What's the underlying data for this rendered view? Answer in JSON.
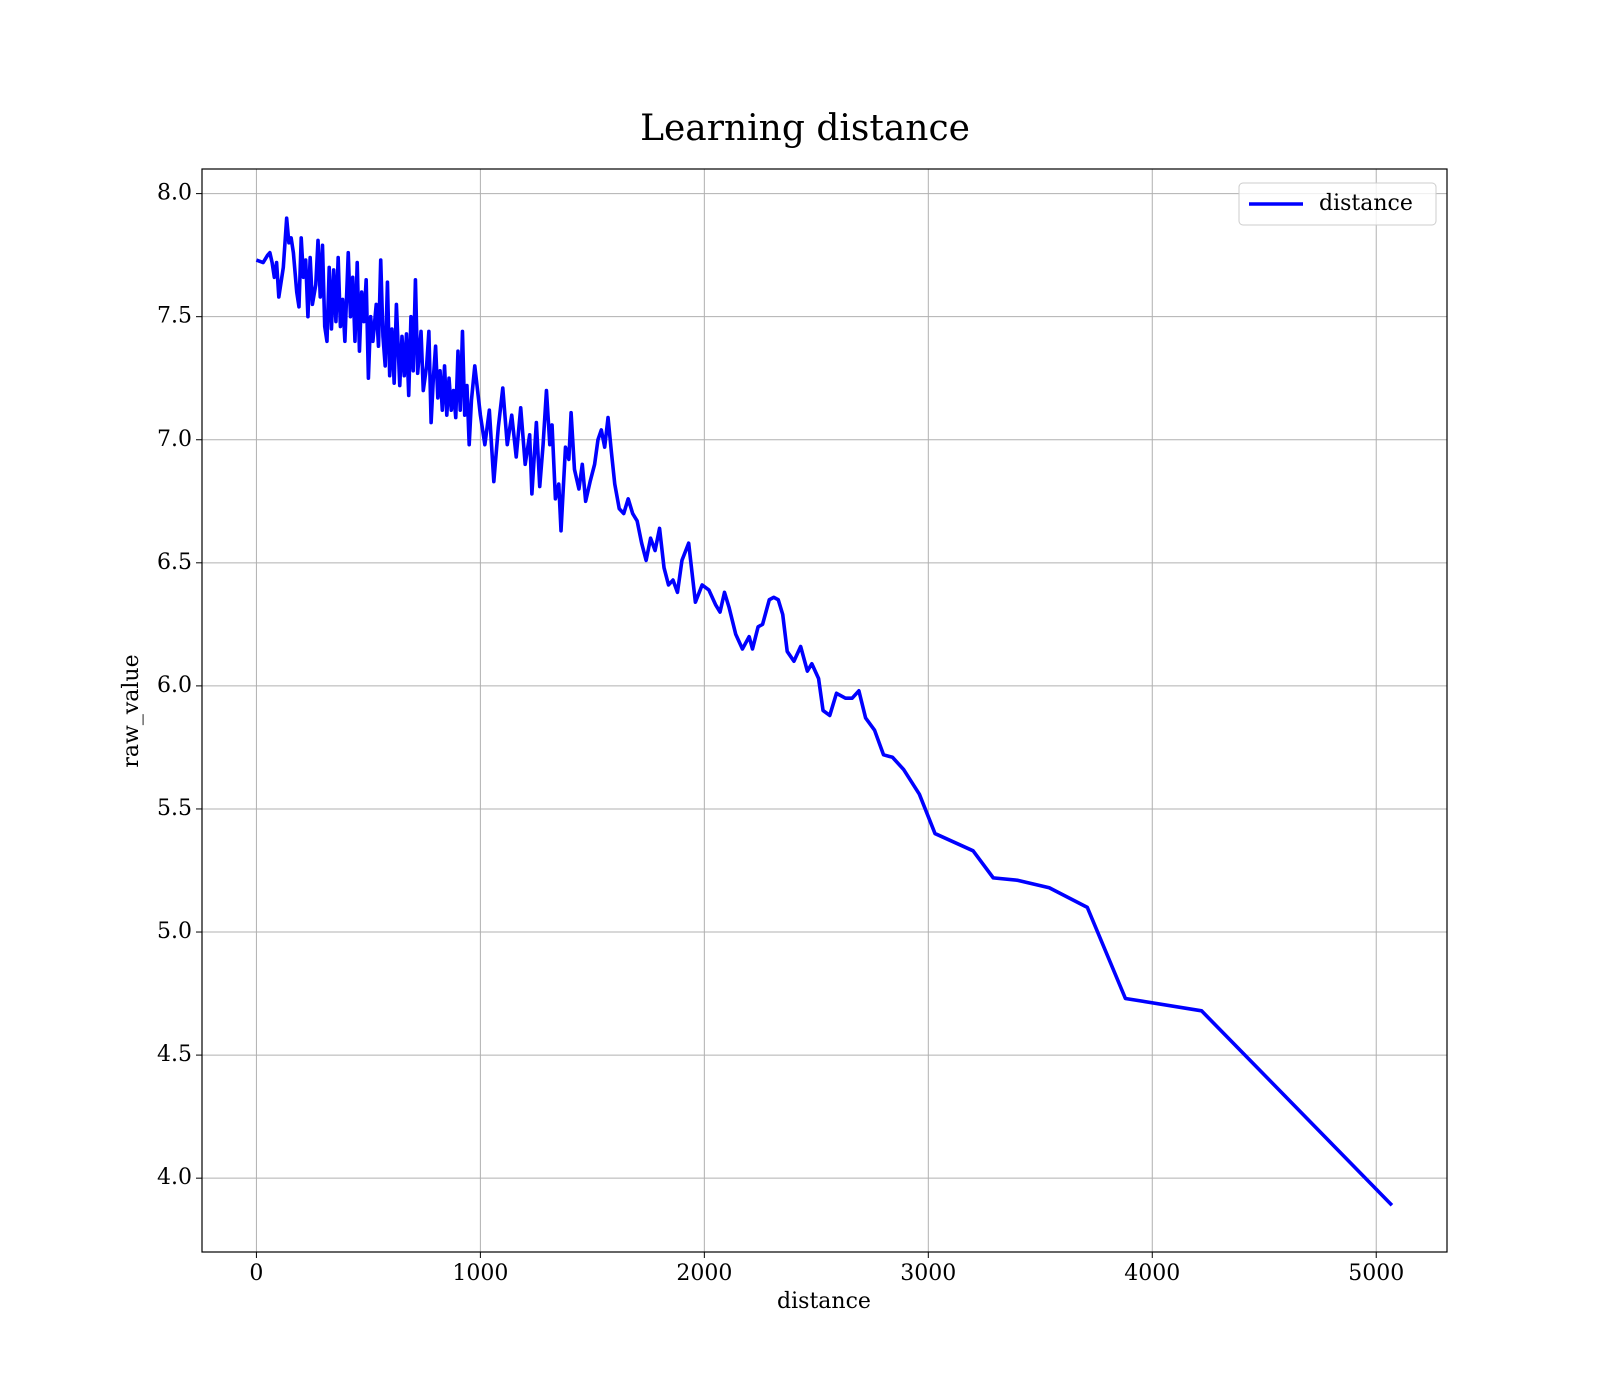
{
  "chart_data": {
    "type": "line",
    "title": "Learning distance",
    "x_label": "distance",
    "y_label": "raw_value",
    "x": [
      0,
      30,
      50,
      60,
      70,
      80,
      90,
      100,
      120,
      135,
      145,
      155,
      165,
      180,
      190,
      200,
      210,
      220,
      230,
      240,
      250,
      265,
      275,
      285,
      295,
      305,
      315,
      325,
      335,
      345,
      355,
      365,
      375,
      385,
      395,
      410,
      420,
      430,
      440,
      450,
      460,
      470,
      480,
      490,
      500,
      510,
      520,
      535,
      545,
      555,
      565,
      575,
      585,
      595,
      605,
      615,
      625,
      640,
      650,
      660,
      670,
      680,
      690,
      700,
      710,
      720,
      735,
      745,
      760,
      770,
      780,
      790,
      800,
      810,
      820,
      830,
      840,
      850,
      860,
      870,
      880,
      890,
      900,
      910,
      920,
      930,
      940,
      950,
      960,
      975,
      1000,
      1020,
      1040,
      1060,
      1080,
      1100,
      1120,
      1140,
      1160,
      1180,
      1200,
      1220,
      1230,
      1250,
      1265,
      1280,
      1295,
      1310,
      1320,
      1335,
      1350,
      1360,
      1380,
      1395,
      1405,
      1420,
      1440,
      1455,
      1470,
      1490,
      1510,
      1525,
      1540,
      1555,
      1570,
      1585,
      1600,
      1620,
      1640,
      1660,
      1680,
      1700,
      1720,
      1740,
      1760,
      1780,
      1800,
      1820,
      1840,
      1860,
      1880,
      1900,
      1930,
      1960,
      1990,
      2020,
      2050,
      2070,
      2090,
      2110,
      2140,
      2170,
      2200,
      2215,
      2240,
      2260,
      2290,
      2310,
      2330,
      2350,
      2370,
      2400,
      2430,
      2460,
      2480,
      2510,
      2530,
      2560,
      2590,
      2630,
      2660,
      2690,
      2720,
      2760,
      2800,
      2840,
      2890,
      2960,
      3030,
      3200,
      3290,
      3400,
      3540,
      3710,
      3880,
      4220,
      5070
    ],
    "series": [
      {
        "name": "distance",
        "color": "#0000ff",
        "values": [
          7.73,
          7.72,
          7.75,
          7.76,
          7.72,
          7.66,
          7.72,
          7.58,
          7.7,
          7.9,
          7.8,
          7.82,
          7.76,
          7.6,
          7.54,
          7.82,
          7.66,
          7.73,
          7.5,
          7.74,
          7.55,
          7.63,
          7.81,
          7.58,
          7.79,
          7.46,
          7.4,
          7.7,
          7.45,
          7.69,
          7.48,
          7.74,
          7.46,
          7.57,
          7.4,
          7.76,
          7.5,
          7.66,
          7.4,
          7.72,
          7.36,
          7.6,
          7.48,
          7.65,
          7.25,
          7.5,
          7.4,
          7.55,
          7.38,
          7.73,
          7.42,
          7.3,
          7.64,
          7.26,
          7.45,
          7.23,
          7.55,
          7.22,
          7.42,
          7.26,
          7.43,
          7.18,
          7.5,
          7.28,
          7.65,
          7.27,
          7.44,
          7.2,
          7.3,
          7.44,
          7.07,
          7.25,
          7.38,
          7.17,
          7.28,
          7.12,
          7.3,
          7.1,
          7.25,
          7.12,
          7.2,
          7.09,
          7.36,
          7.12,
          7.44,
          7.1,
          7.22,
          6.98,
          7.16,
          7.3,
          7.1,
          6.98,
          7.12,
          6.83,
          7.05,
          7.21,
          6.98,
          7.1,
          6.93,
          7.13,
          6.9,
          7.02,
          6.78,
          7.07,
          6.81,
          6.98,
          7.2,
          6.98,
          7.06,
          6.76,
          6.82,
          6.63,
          6.97,
          6.92,
          7.11,
          6.88,
          6.8,
          6.9,
          6.75,
          6.83,
          6.9,
          7.0,
          7.04,
          6.97,
          7.09,
          6.95,
          6.82,
          6.72,
          6.7,
          6.76,
          6.7,
          6.67,
          6.58,
          6.51,
          6.6,
          6.55,
          6.64,
          6.48,
          6.41,
          6.43,
          6.38,
          6.51,
          6.58,
          6.34,
          6.41,
          6.39,
          6.33,
          6.3,
          6.38,
          6.32,
          6.21,
          6.15,
          6.2,
          6.15,
          6.24,
          6.25,
          6.35,
          6.36,
          6.35,
          6.29,
          6.14,
          6.1,
          6.16,
          6.06,
          6.09,
          6.03,
          5.9,
          5.88,
          5.97,
          5.95,
          5.95,
          5.98,
          5.87,
          5.82,
          5.72,
          5.71,
          5.66,
          5.56,
          5.4,
          5.33,
          5.22,
          5.21,
          5.18,
          5.1,
          4.73,
          4.68,
          3.89
        ]
      }
    ],
    "xlim": [
      -243,
      5316
    ],
    "ylim": [
      3.7,
      8.1
    ],
    "xticks": [
      0,
      1000,
      2000,
      3000,
      4000,
      5000
    ],
    "yticks": [
      {
        "value": 4,
        "label": "4.0"
      },
      4.5,
      {
        "value": 5,
        "label": "5.0"
      },
      5.5,
      {
        "value": 6,
        "label": "6.0"
      },
      6.5,
      {
        "value": 7,
        "label": "7.0"
      },
      7.5,
      {
        "value": 8,
        "label": "8.0"
      }
    ],
    "grid": true,
    "legend": "upper right"
  }
}
